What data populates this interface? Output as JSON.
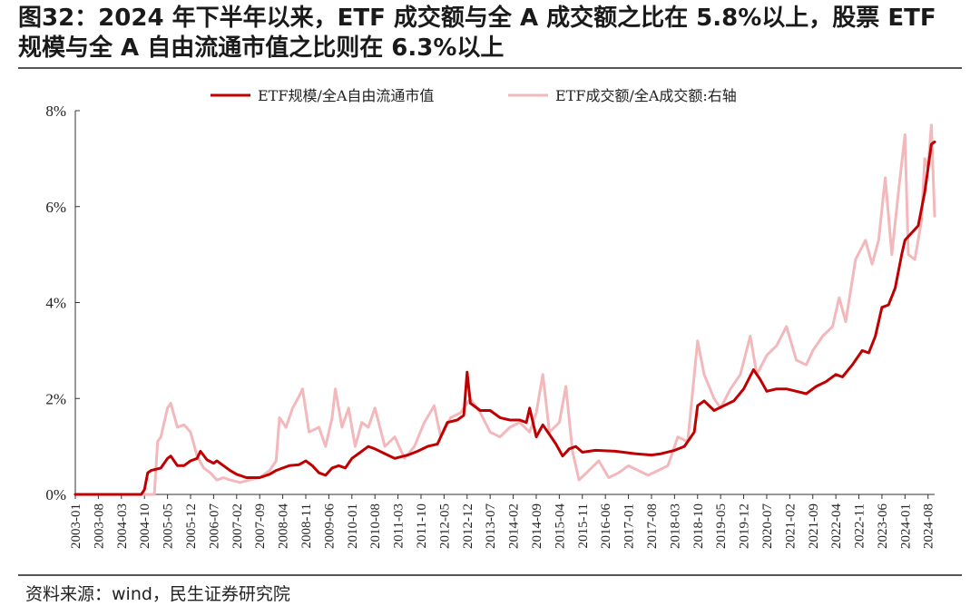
{
  "header": {
    "title": "图32：2024 年下半年以来，ETF 成交额与全 A 成交额之比在 5.8%以上，股票 ETF 规模与全 A 自由流通市值之比则在 6.3%以上"
  },
  "footer": {
    "source": "资料来源：wind，民生证券研究院"
  },
  "colors": {
    "series1": "#c00000",
    "series2": "#f2b8bb",
    "axis": "#333333"
  },
  "chart_data": {
    "type": "line",
    "title": "",
    "xlabel": "",
    "ylabel": "",
    "ylim": [
      0,
      8
    ],
    "yticks": [
      "0%",
      "2%",
      "4%",
      "6%",
      "8%"
    ],
    "ytick_values": [
      0,
      2,
      4,
      6,
      8
    ],
    "x_tick_labels": [
      "2003-01",
      "2003-08",
      "2004-03",
      "2004-10",
      "2005-05",
      "2005-12",
      "2006-07",
      "2007-02",
      "2007-09",
      "2008-04",
      "2008-11",
      "2009-06",
      "2010-01",
      "2010-08",
      "2011-03",
      "2011-10",
      "2012-05",
      "2012-12",
      "2013-07",
      "2014-02",
      "2014-09",
      "2015-04",
      "2015-11",
      "2016-06",
      "2017-01",
      "2017-08",
      "2018-03",
      "2018-10",
      "2019-05",
      "2019-12",
      "2020-07",
      "2021-02",
      "2021-09",
      "2022-04",
      "2022-11",
      "2023-06",
      "2024-01",
      "2024-08"
    ],
    "legend": [
      "ETF规模/全A自由流通市值",
      "ETF成交额/全A成交额:右轴"
    ],
    "legend_position": "top",
    "series": [
      {
        "name": "ETF规模/全A自由流通市值",
        "points": [
          [
            "2003-01",
            0
          ],
          [
            "2004-09",
            0
          ],
          [
            "2004-10",
            0.1
          ],
          [
            "2004-11",
            0.45
          ],
          [
            "2004-12",
            0.5
          ],
          [
            "2005-03",
            0.55
          ],
          [
            "2005-05",
            0.75
          ],
          [
            "2005-06",
            0.8
          ],
          [
            "2005-08",
            0.6
          ],
          [
            "2005-10",
            0.6
          ],
          [
            "2005-12",
            0.7
          ],
          [
            "2006-02",
            0.75
          ],
          [
            "2006-03",
            0.9
          ],
          [
            "2006-05",
            0.72
          ],
          [
            "2006-07",
            0.65
          ],
          [
            "2006-08",
            0.7
          ],
          [
            "2006-10",
            0.6
          ],
          [
            "2006-12",
            0.5
          ],
          [
            "2007-02",
            0.42
          ],
          [
            "2007-05",
            0.35
          ],
          [
            "2007-09",
            0.35
          ],
          [
            "2007-12",
            0.42
          ],
          [
            "2008-02",
            0.5
          ],
          [
            "2008-04",
            0.55
          ],
          [
            "2008-06",
            0.6
          ],
          [
            "2008-09",
            0.62
          ],
          [
            "2008-11",
            0.7
          ],
          [
            "2009-01",
            0.6
          ],
          [
            "2009-03",
            0.45
          ],
          [
            "2009-05",
            0.4
          ],
          [
            "2009-07",
            0.55
          ],
          [
            "2009-09",
            0.6
          ],
          [
            "2009-11",
            0.55
          ],
          [
            "2010-01",
            0.75
          ],
          [
            "2010-03",
            0.85
          ],
          [
            "2010-06",
            1.0
          ],
          [
            "2010-08",
            0.95
          ],
          [
            "2010-11",
            0.85
          ],
          [
            "2011-02",
            0.75
          ],
          [
            "2011-06",
            0.82
          ],
          [
            "2011-09",
            0.9
          ],
          [
            "2011-12",
            1.0
          ],
          [
            "2012-03",
            1.05
          ],
          [
            "2012-06",
            1.5
          ],
          [
            "2012-09",
            1.55
          ],
          [
            "2012-11",
            1.65
          ],
          [
            "2012-12",
            2.55
          ],
          [
            "2013-01",
            1.9
          ],
          [
            "2013-04",
            1.75
          ],
          [
            "2013-07",
            1.75
          ],
          [
            "2013-10",
            1.6
          ],
          [
            "2014-01",
            1.55
          ],
          [
            "2014-04",
            1.55
          ],
          [
            "2014-06",
            1.5
          ],
          [
            "2014-07",
            1.8
          ],
          [
            "2014-09",
            1.2
          ],
          [
            "2014-11",
            1.45
          ],
          [
            "2015-01",
            1.25
          ],
          [
            "2015-03",
            1.05
          ],
          [
            "2015-05",
            0.8
          ],
          [
            "2015-07",
            0.95
          ],
          [
            "2015-09",
            1.0
          ],
          [
            "2015-11",
            0.88
          ],
          [
            "2016-03",
            0.92
          ],
          [
            "2016-09",
            0.9
          ],
          [
            "2017-03",
            0.85
          ],
          [
            "2017-08",
            0.82
          ],
          [
            "2017-11",
            0.85
          ],
          [
            "2018-03",
            0.92
          ],
          [
            "2018-06",
            1.0
          ],
          [
            "2018-09",
            1.3
          ],
          [
            "2018-10",
            1.85
          ],
          [
            "2018-12",
            1.95
          ],
          [
            "2019-03",
            1.75
          ],
          [
            "2019-06",
            1.85
          ],
          [
            "2019-09",
            1.95
          ],
          [
            "2019-12",
            2.2
          ],
          [
            "2020-03",
            2.6
          ],
          [
            "2020-05",
            2.4
          ],
          [
            "2020-07",
            2.15
          ],
          [
            "2020-10",
            2.2
          ],
          [
            "2021-01",
            2.2
          ],
          [
            "2021-04",
            2.15
          ],
          [
            "2021-07",
            2.1
          ],
          [
            "2021-10",
            2.25
          ],
          [
            "2022-01",
            2.35
          ],
          [
            "2022-04",
            2.5
          ],
          [
            "2022-06",
            2.45
          ],
          [
            "2022-09",
            2.7
          ],
          [
            "2022-12",
            3.0
          ],
          [
            "2023-02",
            2.95
          ],
          [
            "2023-04",
            3.3
          ],
          [
            "2023-06",
            3.9
          ],
          [
            "2023-08",
            3.95
          ],
          [
            "2023-10",
            4.3
          ],
          [
            "2023-12",
            5.0
          ],
          [
            "2024-01",
            5.3
          ],
          [
            "2024-03",
            5.45
          ],
          [
            "2024-05",
            5.6
          ],
          [
            "2024-07",
            6.3
          ],
          [
            "2024-09",
            7.3
          ],
          [
            "2024-10",
            7.35
          ]
        ]
      },
      {
        "name": "ETF成交额/全A成交额:右轴",
        "points": [
          [
            "2003-01",
            0
          ],
          [
            "2005-01",
            0
          ],
          [
            "2005-02",
            1.1
          ],
          [
            "2005-03",
            1.2
          ],
          [
            "2005-05",
            1.8
          ],
          [
            "2005-06",
            1.9
          ],
          [
            "2005-08",
            1.4
          ],
          [
            "2005-10",
            1.45
          ],
          [
            "2005-12",
            1.3
          ],
          [
            "2006-02",
            0.8
          ],
          [
            "2006-04",
            0.55
          ],
          [
            "2006-06",
            0.45
          ],
          [
            "2006-08",
            0.3
          ],
          [
            "2006-10",
            0.35
          ],
          [
            "2006-12",
            0.3
          ],
          [
            "2007-03",
            0.25
          ],
          [
            "2007-06",
            0.3
          ],
          [
            "2007-09",
            0.35
          ],
          [
            "2007-12",
            0.5
          ],
          [
            "2008-02",
            0.7
          ],
          [
            "2008-03",
            1.6
          ],
          [
            "2008-05",
            1.4
          ],
          [
            "2008-07",
            1.8
          ],
          [
            "2008-09",
            2.05
          ],
          [
            "2008-10",
            2.2
          ],
          [
            "2008-12",
            1.3
          ],
          [
            "2009-03",
            1.4
          ],
          [
            "2009-05",
            1.0
          ],
          [
            "2009-07",
            1.6
          ],
          [
            "2009-08",
            2.2
          ],
          [
            "2009-10",
            1.4
          ],
          [
            "2009-12",
            1.8
          ],
          [
            "2010-02",
            1.0
          ],
          [
            "2010-04",
            1.5
          ],
          [
            "2010-06",
            1.4
          ],
          [
            "2010-08",
            1.8
          ],
          [
            "2010-11",
            1.0
          ],
          [
            "2011-02",
            1.2
          ],
          [
            "2011-05",
            0.75
          ],
          [
            "2011-08",
            1.0
          ],
          [
            "2011-11",
            1.5
          ],
          [
            "2012-02",
            1.85
          ],
          [
            "2012-04",
            1.2
          ],
          [
            "2012-07",
            1.6
          ],
          [
            "2012-10",
            1.7
          ],
          [
            "2013-01",
            2.0
          ],
          [
            "2013-04",
            1.7
          ],
          [
            "2013-07",
            1.3
          ],
          [
            "2013-10",
            1.2
          ],
          [
            "2014-01",
            1.4
          ],
          [
            "2014-04",
            1.5
          ],
          [
            "2014-07",
            1.3
          ],
          [
            "2014-09",
            1.7
          ],
          [
            "2014-11",
            2.5
          ],
          [
            "2015-01",
            1.3
          ],
          [
            "2015-04",
            1.5
          ],
          [
            "2015-06",
            2.25
          ],
          [
            "2015-08",
            0.9
          ],
          [
            "2015-10",
            0.3
          ],
          [
            "2016-01",
            0.5
          ],
          [
            "2016-04",
            0.7
          ],
          [
            "2016-07",
            0.35
          ],
          [
            "2016-10",
            0.45
          ],
          [
            "2017-01",
            0.6
          ],
          [
            "2017-04",
            0.5
          ],
          [
            "2017-07",
            0.4
          ],
          [
            "2017-10",
            0.5
          ],
          [
            "2018-01",
            0.6
          ],
          [
            "2018-04",
            1.2
          ],
          [
            "2018-07",
            1.1
          ],
          [
            "2018-10",
            3.2
          ],
          [
            "2018-12",
            2.5
          ],
          [
            "2019-03",
            2.0
          ],
          [
            "2019-05",
            1.8
          ],
          [
            "2019-08",
            2.2
          ],
          [
            "2019-11",
            2.5
          ],
          [
            "2020-02",
            3.3
          ],
          [
            "2020-04",
            2.5
          ],
          [
            "2020-07",
            2.9
          ],
          [
            "2020-10",
            3.1
          ],
          [
            "2021-01",
            3.5
          ],
          [
            "2021-04",
            2.8
          ],
          [
            "2021-07",
            2.7
          ],
          [
            "2021-09",
            3.0
          ],
          [
            "2021-12",
            3.3
          ],
          [
            "2022-03",
            3.5
          ],
          [
            "2022-05",
            4.1
          ],
          [
            "2022-07",
            3.6
          ],
          [
            "2022-10",
            4.9
          ],
          [
            "2023-01",
            5.3
          ],
          [
            "2023-03",
            4.8
          ],
          [
            "2023-05",
            5.3
          ],
          [
            "2023-07",
            6.6
          ],
          [
            "2023-09",
            5.0
          ],
          [
            "2023-11",
            6.3
          ],
          [
            "2024-01",
            7.5
          ],
          [
            "2024-02",
            5.0
          ],
          [
            "2024-04",
            4.9
          ],
          [
            "2024-06",
            5.7
          ],
          [
            "2024-07",
            7.0
          ],
          [
            "2024-08",
            6.8
          ],
          [
            "2024-09",
            7.7
          ],
          [
            "2024-10",
            5.8
          ]
        ]
      }
    ]
  }
}
